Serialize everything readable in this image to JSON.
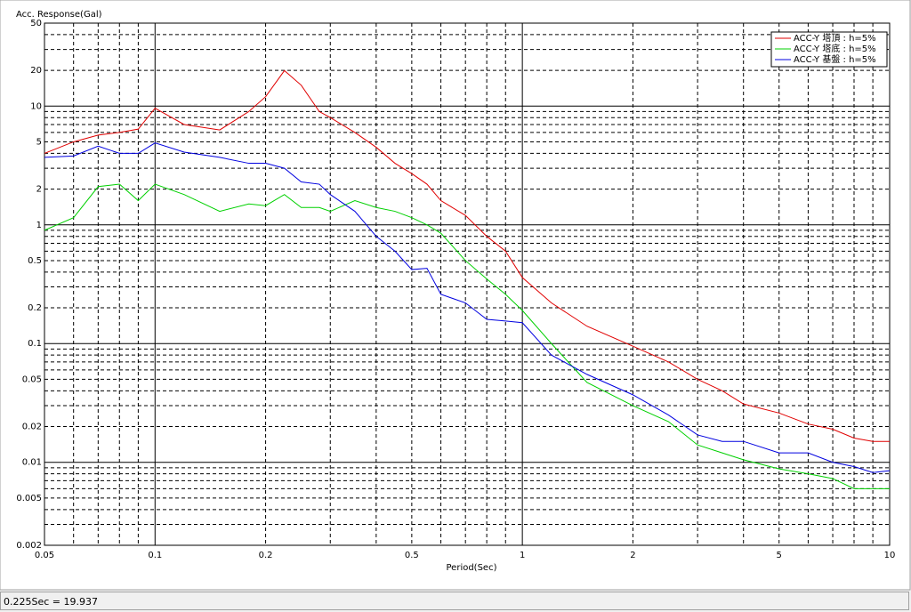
{
  "chart_data": {
    "type": "line",
    "y_label": "Acc. Response(Gal)",
    "x_label": "Period(Sec)",
    "log_x": true,
    "log_y": true,
    "grid": true,
    "legend": "top-right",
    "x": [
      0.05,
      0.06,
      0.07,
      0.08,
      0.09,
      0.1,
      0.12,
      0.15,
      0.18,
      0.2,
      0.225,
      0.25,
      0.28,
      0.3,
      0.35,
      0.4,
      0.45,
      0.5,
      0.55,
      0.6,
      0.7,
      0.8,
      0.9,
      1,
      1.2,
      1.5,
      2,
      2.5,
      3,
      3.5,
      4,
      5,
      6,
      7,
      8,
      9,
      10
    ],
    "series": [
      {
        "name": "ACC-Y 塔頂 : h=5%",
        "color": "#e00000",
        "values": [
          4,
          5,
          5.7,
          6,
          6.4,
          9.6,
          7,
          6.3,
          9,
          12,
          19.9,
          15,
          9,
          8,
          6,
          4.5,
          3.3,
          2.7,
          2.2,
          1.6,
          1.2,
          0.8,
          0.6,
          0.36,
          0.22,
          0.14,
          0.095,
          0.07,
          0.05,
          0.04,
          0.031,
          0.026,
          0.021,
          0.019,
          0.016,
          0.015,
          0.015
        ]
      },
      {
        "name": "ACC-Y 塔底 : h=5%",
        "color": "#00d000",
        "values": [
          0.9,
          1.15,
          2.1,
          2.2,
          1.6,
          2.2,
          1.8,
          1.3,
          1.5,
          1.45,
          1.8,
          1.4,
          1.4,
          1.3,
          1.6,
          1.4,
          1.3,
          1.15,
          1,
          0.85,
          0.5,
          0.35,
          0.26,
          0.19,
          0.1,
          0.047,
          0.03,
          0.022,
          0.014,
          0.012,
          0.0105,
          0.0088,
          0.008,
          0.0073,
          0.006,
          0.006,
          0.006
        ]
      },
      {
        "name": "ACC-Y 基盤 : h=5%",
        "color": "#0000e0",
        "values": [
          3.7,
          3.8,
          4.6,
          4,
          4,
          4.9,
          4.1,
          3.7,
          3.3,
          3.3,
          3,
          2.3,
          2.2,
          1.8,
          1.3,
          0.8,
          0.6,
          0.42,
          0.43,
          0.26,
          0.22,
          0.16,
          0.155,
          0.15,
          0.08,
          0.055,
          0.037,
          0.025,
          0.017,
          0.015,
          0.015,
          0.012,
          0.012,
          0.01,
          0.0092,
          0.0082,
          0.0085
        ]
      }
    ],
    "xlim": [
      0.05,
      10
    ],
    "xticks": [
      0.05,
      0.1,
      0.2,
      0.5,
      1,
      2,
      5,
      10
    ],
    "xticks_minor": [
      0.06,
      0.07,
      0.08,
      0.09,
      0.3,
      0.4,
      0.6,
      0.7,
      0.8,
      0.9,
      3,
      4,
      6,
      7,
      8,
      9
    ],
    "ylim": [
      0.002,
      50
    ],
    "yticks": [
      0.002,
      0.005,
      0.01,
      0.02,
      0.05,
      0.1,
      0.2,
      0.5,
      1,
      2,
      5,
      10,
      20,
      50
    ],
    "yticks_minor": [
      0.003,
      0.004,
      0.006,
      0.007,
      0.008,
      0.009,
      0.03,
      0.04,
      0.06,
      0.07,
      0.08,
      0.09,
      0.3,
      0.4,
      0.6,
      0.7,
      0.8,
      0.9,
      3,
      4,
      6,
      7,
      8,
      9,
      30,
      40
    ]
  },
  "status": "0.225Sec = 19.937"
}
